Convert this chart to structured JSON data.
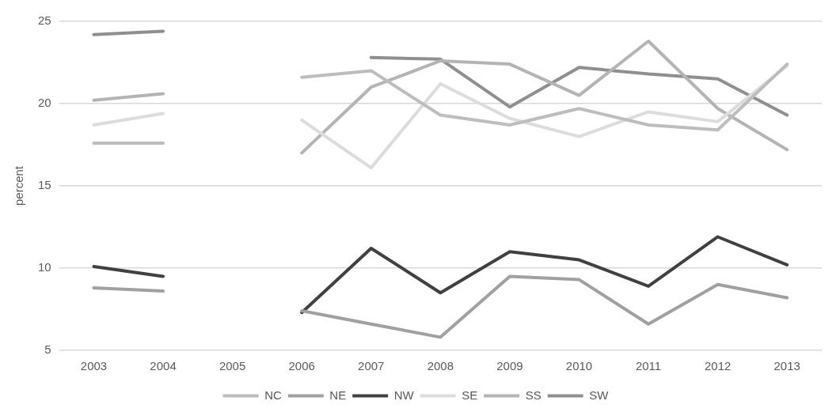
{
  "chart_data": {
    "type": "line",
    "ylabel": "percent",
    "categories": [
      "2003",
      "2004",
      "2005",
      "2006",
      "2007",
      "2008",
      "2009",
      "2010",
      "2011",
      "2012",
      "2013"
    ],
    "series": [
      {
        "name": "NC",
        "color": "#bdbdbf",
        "values": [
          17.6,
          17.6,
          null,
          21.6,
          22.0,
          19.3,
          18.7,
          19.7,
          18.7,
          18.4,
          22.4
        ]
      },
      {
        "name": "NE",
        "color": "#a0a0a3",
        "values": [
          8.8,
          8.6,
          null,
          7.4,
          6.6,
          5.8,
          9.5,
          9.3,
          6.6,
          9.0,
          8.2
        ]
      },
      {
        "name": "NW",
        "color": "#404040",
        "values": [
          10.1,
          9.5,
          null,
          7.3,
          11.2,
          8.5,
          11.0,
          10.5,
          8.9,
          11.9,
          10.2
        ]
      },
      {
        "name": "SE",
        "color": "#dcdcdd",
        "values": [
          18.7,
          19.4,
          null,
          19.0,
          16.1,
          21.2,
          19.1,
          18.0,
          19.5,
          18.9,
          22.3
        ]
      },
      {
        "name": "SS",
        "color": "#b4b4b7",
        "values": [
          20.2,
          20.6,
          null,
          17.0,
          21.0,
          22.6,
          22.4,
          20.5,
          23.8,
          19.7,
          17.2
        ]
      },
      {
        "name": "SW",
        "color": "#8f8f91",
        "values": [
          24.2,
          24.4,
          null,
          null,
          22.8,
          22.7,
          19.8,
          22.2,
          21.8,
          21.5,
          19.3
        ]
      }
    ],
    "ylim": [
      5,
      25
    ],
    "yticks": [
      5,
      10,
      15,
      20,
      25
    ],
    "grid": "y",
    "legend": "bottom",
    "marker": "none",
    "line_style": "solid"
  }
}
